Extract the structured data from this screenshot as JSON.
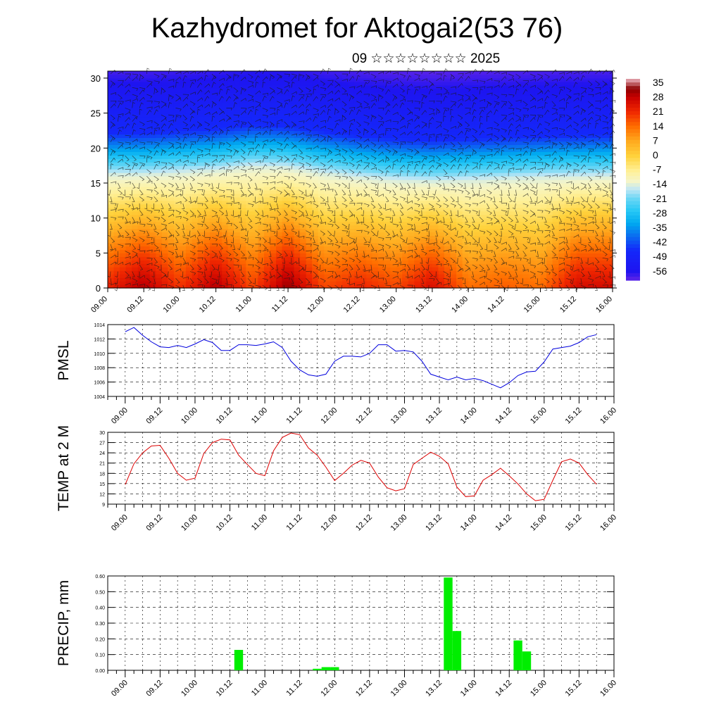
{
  "header": {
    "title": "Kazhydromet for Aktogai2(53 76)",
    "subtitle": "09 ☆☆☆☆☆☆☆☆ 2025"
  },
  "colors": {
    "pmsl_line": "#0000dd",
    "temp_line": "#dd0000",
    "precip_bar": "#00ee00",
    "grid": "#000000"
  },
  "time_ticks": [
    "09.00",
    "09.12",
    "10.00",
    "10.12",
    "11.00",
    "11.12",
    "12.00",
    "12.12",
    "13.00",
    "13.12",
    "14.00",
    "14.12",
    "15.00",
    "15.12",
    "16.00"
  ],
  "chart_data": [
    {
      "type": "heatmap",
      "title": "",
      "xlabel": "",
      "ylabel": "",
      "x_ticks": [
        "09.00",
        "09.12",
        "10.00",
        "10.12",
        "11.00",
        "11.12",
        "12.00",
        "12.12",
        "13.00",
        "13.12",
        "14.00",
        "14.12",
        "15.00",
        "15.12",
        "16.00"
      ],
      "y_ticks": [
        0,
        5,
        10,
        15,
        20,
        25,
        30
      ],
      "ylim": [
        0,
        31
      ],
      "colorbar_labels": [
        "35",
        "28",
        "21",
        "14",
        "7",
        "0",
        "-7",
        "-14",
        "-21",
        "-28",
        "-35",
        "-42",
        "-49",
        "-56"
      ],
      "overlay": "wind barbs",
      "surface_temperature_by_halfday": [
        22,
        30,
        20,
        30,
        18,
        32,
        18,
        22,
        18,
        26,
        14,
        16,
        14,
        26
      ],
      "freezing_level_by_halfday": [
        16.2,
        16.2,
        16.5,
        16.8,
        17.4,
        17.2,
        16.4,
        15.8,
        15.4,
        15.2,
        15.4,
        15.6,
        15.8,
        15.9,
        16.0
      ]
    },
    {
      "type": "line",
      "title": "",
      "xlabel": "",
      "ylabel": "PMSL",
      "ylim": [
        1004,
        1014
      ],
      "y_ticks": [
        1004,
        1006,
        1008,
        1010,
        1012,
        1014
      ],
      "grid": true,
      "series": [
        {
          "x_hours": [
            0,
            3,
            6,
            9,
            12,
            15,
            18,
            21,
            24,
            27,
            30,
            33,
            36,
            39,
            42,
            45,
            48,
            51,
            54,
            57,
            60,
            63,
            66,
            69,
            72,
            75,
            78,
            81,
            84,
            87,
            90,
            93,
            96,
            99,
            102,
            105,
            108,
            111,
            114,
            117,
            120,
            123,
            126,
            129,
            132,
            135,
            138,
            141,
            144,
            147,
            150,
            153,
            156,
            159,
            162
          ],
          "values": [
            1013.0,
            1013.6,
            1012.5,
            1011.6,
            1010.9,
            1010.8,
            1011.1,
            1010.8,
            1011.3,
            1011.9,
            1011.5,
            1010.4,
            1010.4,
            1011.2,
            1011.2,
            1011.1,
            1011.3,
            1011.6,
            1010.8,
            1008.9,
            1007.7,
            1007.0,
            1006.8,
            1007.1,
            1008.9,
            1009.6,
            1009.6,
            1009.5,
            1010.0,
            1011.2,
            1011.2,
            1010.3,
            1010.4,
            1010.2,
            1008.9,
            1007.1,
            1006.7,
            1006.3,
            1006.7,
            1006.3,
            1006.5,
            1006.2,
            1005.7,
            1005.2,
            1005.9,
            1006.9,
            1007.4,
            1007.5,
            1008.8,
            1010.6,
            1010.8,
            1011.0,
            1011.5,
            1012.3,
            1012.6
          ]
        }
      ]
    },
    {
      "type": "line",
      "title": "",
      "xlabel": "",
      "ylabel": "TEMP at 2 M",
      "ylim": [
        9,
        30
      ],
      "y_ticks": [
        9,
        12,
        15,
        18,
        21,
        24,
        27,
        30
      ],
      "grid": true,
      "series": [
        {
          "x_hours": [
            0,
            3,
            6,
            9,
            12,
            15,
            18,
            21,
            24,
            27,
            30,
            33,
            36,
            39,
            42,
            45,
            48,
            51,
            54,
            57,
            60,
            63,
            66,
            69,
            72,
            75,
            78,
            81,
            84,
            87,
            90,
            93,
            96,
            99,
            102,
            105,
            108,
            111,
            114,
            117,
            120,
            123,
            126,
            129,
            132,
            135,
            138,
            141,
            144,
            147,
            150,
            153,
            156,
            159,
            162
          ],
          "values": [
            14.7,
            20.8,
            24.0,
            26.0,
            26.2,
            22.4,
            18.0,
            16.0,
            16.6,
            23.8,
            27.0,
            28.0,
            27.8,
            23.3,
            20.6,
            18.0,
            17.3,
            24.6,
            28.5,
            29.8,
            29.3,
            25.4,
            23.3,
            19.8,
            15.9,
            18.0,
            20.4,
            21.8,
            21.0,
            16.9,
            13.8,
            12.9,
            13.5,
            20.6,
            22.4,
            24.2,
            23.0,
            20.8,
            14.0,
            11.2,
            11.4,
            16.0,
            17.6,
            19.5,
            17.3,
            14.9,
            12.0,
            10.0,
            10.4,
            16.0,
            21.4,
            22.2,
            21.0,
            17.6,
            14.8
          ]
        }
      ]
    },
    {
      "type": "bar",
      "title": "",
      "xlabel": "",
      "ylabel": "PRECIP, mm",
      "ylim": [
        0,
        0.6
      ],
      "y_ticks": [
        "0.00",
        "0.10",
        "0.20",
        "0.30",
        "0.40",
        "0.50",
        "0.60"
      ],
      "grid": true,
      "bar_width_hours": 3,
      "x_hours": [
        39,
        66,
        69,
        72,
        111,
        114,
        135,
        138
      ],
      "values": [
        0.13,
        0.01,
        0.02,
        0.02,
        0.59,
        0.25,
        0.19,
        0.12
      ]
    }
  ]
}
